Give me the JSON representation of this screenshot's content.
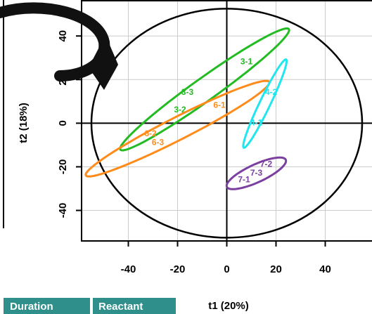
{
  "chart_data": {
    "type": "pca",
    "x_label": "t1 (20%)",
    "y_label": "t2 (18%)",
    "xlim": [
      -59,
      59
    ],
    "ylim": [
      -54,
      56.5
    ],
    "xticks": [
      -40,
      -20,
      0,
      20,
      40
    ],
    "yticks": [
      -40,
      -20,
      0,
      20,
      40
    ],
    "grid": true,
    "confidence_ellipse": {
      "cx": 0,
      "cy": 0,
      "rx": 55,
      "ry": 52.5,
      "color": "#000000"
    },
    "groups": [
      {
        "color": "#22bb22",
        "ellipse": {
          "cx": -9,
          "cy": 15.5,
          "a": 44,
          "b": 5,
          "angle": 39
        },
        "labels": [
          {
            "text": "3-1",
            "x": 8,
            "y": 28
          },
          {
            "text": "3-3",
            "x": -16,
            "y": 14
          },
          {
            "text": "3-2",
            "x": -19,
            "y": 6
          }
        ]
      },
      {
        "color": "#ff8c1a",
        "ellipse": {
          "cx": -20,
          "cy": -2.5,
          "a": 43,
          "b": 5,
          "angle": 30
        },
        "labels": [
          {
            "text": "6-1",
            "x": -3,
            "y": 8
          },
          {
            "text": "6-2",
            "x": -31,
            "y": -5
          },
          {
            "text": "6-3",
            "x": -28,
            "y": -9
          }
        ]
      },
      {
        "color": "#22e6ee",
        "ellipse": {
          "cx": 15.5,
          "cy": 9,
          "a": 22,
          "b": 2.2,
          "angle": 67
        },
        "labels": [
          {
            "text": "4-2",
            "x": 18,
            "y": 14
          },
          {
            "text": "4-1",
            "x": 12,
            "y": 0
          }
        ]
      },
      {
        "color": "#7b3fa0",
        "ellipse": {
          "cx": 12,
          "cy": -23,
          "a": 13.5,
          "b": 4,
          "angle": 28
        },
        "labels": [
          {
            "text": "7-2",
            "x": 16,
            "y": -19
          },
          {
            "text": "7-3",
            "x": 12,
            "y": -23
          },
          {
            "text": "7-1",
            "x": 7,
            "y": -26
          }
        ]
      }
    ]
  },
  "table": {
    "headers": [
      "Duration",
      "Reactant"
    ]
  }
}
